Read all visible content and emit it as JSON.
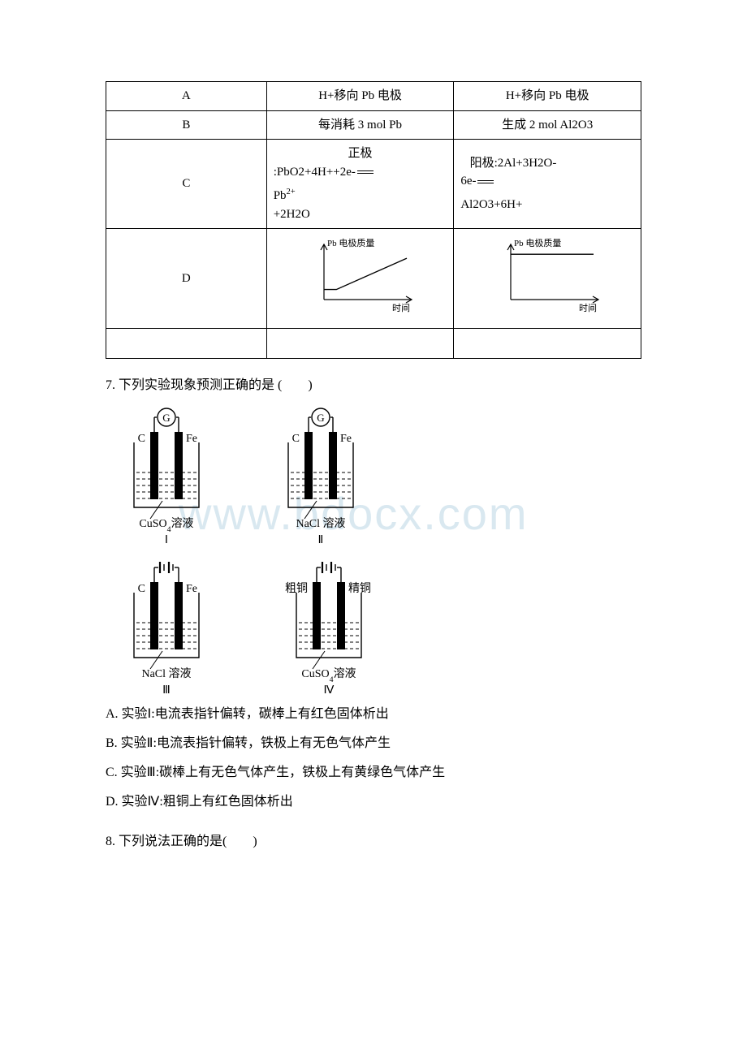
{
  "table": {
    "border_color": "#000000",
    "background_color": "#ffffff",
    "font_size": 15,
    "columns": [
      "c1",
      "c2",
      "c3"
    ],
    "rows": {
      "A": {
        "label": "A",
        "col2": "H+移向 Pb 电极",
        "col3": "H+移向 Pb 电极"
      },
      "B": {
        "label": "B",
        "col2": "每消耗 3 mol Pb",
        "col3": "生成 2 mol Al2O3"
      },
      "C": {
        "label": "C",
        "col2_line1": "正极",
        "col2_line2a": ":PbO2+4H++2e-",
        "col2_line3": "Pb",
        "col2_line3_sup": "2+",
        "col2_line4": "+2H2O",
        "col3_line1a": "阳极:2Al+3H2O-",
        "col3_line2a": "6e-",
        "col3_line3": "Al2O3+6H+"
      },
      "D": {
        "label": "D",
        "chart": {
          "type": "line",
          "y_label": "Pb 电极质量",
          "x_label": "时间",
          "axis_color": "#000000",
          "line_color": "#000000",
          "line_width": 1.4,
          "label_fontsize": 11,
          "left": {
            "xlim": [
              0,
              10
            ],
            "ylim": [
              0,
              10
            ],
            "points_x": [
              0,
              1.5,
              10
            ],
            "points_y": [
              2.0,
              2.0,
              8.2
            ]
          },
          "right": {
            "xlim": [
              0,
              10
            ],
            "ylim": [
              0,
              10
            ],
            "points_x": [
              0,
              10
            ],
            "points_y": [
              9.0,
              9.0
            ]
          }
        }
      }
    }
  },
  "q7": {
    "text": "7. 下列实验现象预测正确的是 (　　)",
    "diagram": {
      "stroke": "#000000",
      "fill_liquid": "#ffffff",
      "electrode_fill": "#000000",
      "label_fontsize": 14,
      "small_fontsize": 13,
      "I": {
        "left_el": "C",
        "right_el": "Fe",
        "meter": "G",
        "solution": "CuSO",
        "solution_sub": "4",
        "solution_tail": "溶液",
        "roman": "Ⅰ"
      },
      "II": {
        "left_el": "C",
        "right_el": "Fe",
        "meter": "G",
        "solution_plain": "NaCl 溶液",
        "roman": "Ⅱ"
      },
      "III": {
        "left_el": "C",
        "right_el": "Fe",
        "meter": "battery",
        "solution_plain": "NaCl 溶液",
        "roman": "Ⅲ"
      },
      "IV": {
        "left_el": "粗铜",
        "right_el": "精铜",
        "meter": "battery",
        "solution": "CuSO",
        "solution_sub": "4",
        "solution_tail": "溶液",
        "roman": "Ⅳ"
      }
    },
    "options": {
      "A": "A. 实验Ⅰ:电流表指针偏转，碳棒上有红色固体析出",
      "B": "B. 实验Ⅱ:电流表指针偏转，铁极上有无色气体产生",
      "C": "C. 实验Ⅲ:碳棒上有无色气体产生，铁极上有黄绿色气体产生",
      "D": "D. 实验Ⅳ:粗铜上有红色固体析出"
    }
  },
  "q8": {
    "text": "8. 下列说法正确的是(　　)"
  },
  "watermark": {
    "text": "www.bdocx.com",
    "color": "#d9e8f0",
    "fontsize": 56
  }
}
